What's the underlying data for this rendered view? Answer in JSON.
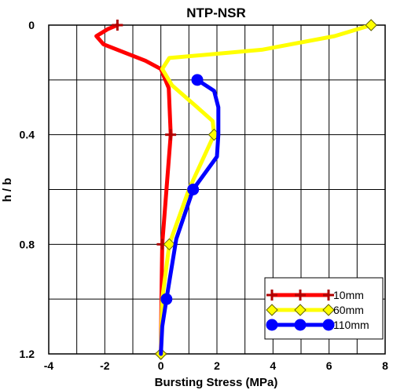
{
  "chart_data": {
    "type": "line",
    "title": "NTP-NSR",
    "xlabel": "Bursting Stress (MPa)",
    "ylabel": "h / b",
    "xlim": [
      -4,
      8
    ],
    "ylim": [
      1.2,
      0
    ],
    "y_inverted": true,
    "x_ticks": [
      "-4",
      "-2",
      "0",
      "2",
      "4",
      "6",
      "8"
    ],
    "y_ticks": [
      "0",
      "0.4",
      "0.8",
      "1.2"
    ],
    "grid": true,
    "legend_position": "bottom-right",
    "series": [
      {
        "name": "10mm",
        "color": "#ff0000",
        "marker": "plus",
        "points": [
          [
            -1.55,
            0.0
          ],
          [
            -1.9,
            0.015
          ],
          [
            -2.3,
            0.04
          ],
          [
            -2.05,
            0.07
          ],
          [
            -1.3,
            0.1
          ],
          [
            -0.55,
            0.13
          ],
          [
            0.0,
            0.16
          ],
          [
            0.28,
            0.23
          ],
          [
            0.35,
            0.4
          ],
          [
            0.2,
            0.6
          ],
          [
            0.05,
            0.8
          ],
          [
            0.02,
            1.0
          ],
          [
            0.0,
            1.2
          ]
        ],
        "marker_points": [
          [
            -1.55,
            0.0
          ],
          [
            0.35,
            0.4
          ],
          [
            0.05,
            0.8
          ],
          [
            0.0,
            1.2
          ]
        ]
      },
      {
        "name": "60mm",
        "color": "#ffff00",
        "marker": "diamond",
        "points": [
          [
            7.5,
            0.0
          ],
          [
            6.2,
            0.04
          ],
          [
            3.6,
            0.09
          ],
          [
            0.3,
            0.12
          ],
          [
            0.05,
            0.16
          ],
          [
            0.4,
            0.22
          ],
          [
            1.3,
            0.3
          ],
          [
            1.85,
            0.35
          ],
          [
            1.9,
            0.4
          ],
          [
            1.0,
            0.6
          ],
          [
            0.3,
            0.8
          ],
          [
            0.05,
            1.0
          ],
          [
            0.0,
            1.2
          ]
        ],
        "marker_points": [
          [
            7.5,
            0.0
          ],
          [
            1.9,
            0.4
          ],
          [
            0.3,
            0.8
          ],
          [
            0.0,
            1.2
          ]
        ]
      },
      {
        "name": "110mm",
        "color": "#0000ff",
        "marker": "circle",
        "points": [
          [
            1.3,
            0.2
          ],
          [
            1.9,
            0.24
          ],
          [
            2.05,
            0.3
          ],
          [
            2.05,
            0.4
          ],
          [
            2.0,
            0.48
          ],
          [
            1.15,
            0.6
          ],
          [
            0.55,
            0.78
          ],
          [
            0.2,
            1.0
          ],
          [
            0.05,
            1.1
          ],
          [
            0.0,
            1.2
          ]
        ],
        "marker_points": [
          [
            1.3,
            0.2
          ],
          [
            1.15,
            0.6
          ],
          [
            0.2,
            1.0
          ]
        ]
      }
    ]
  }
}
